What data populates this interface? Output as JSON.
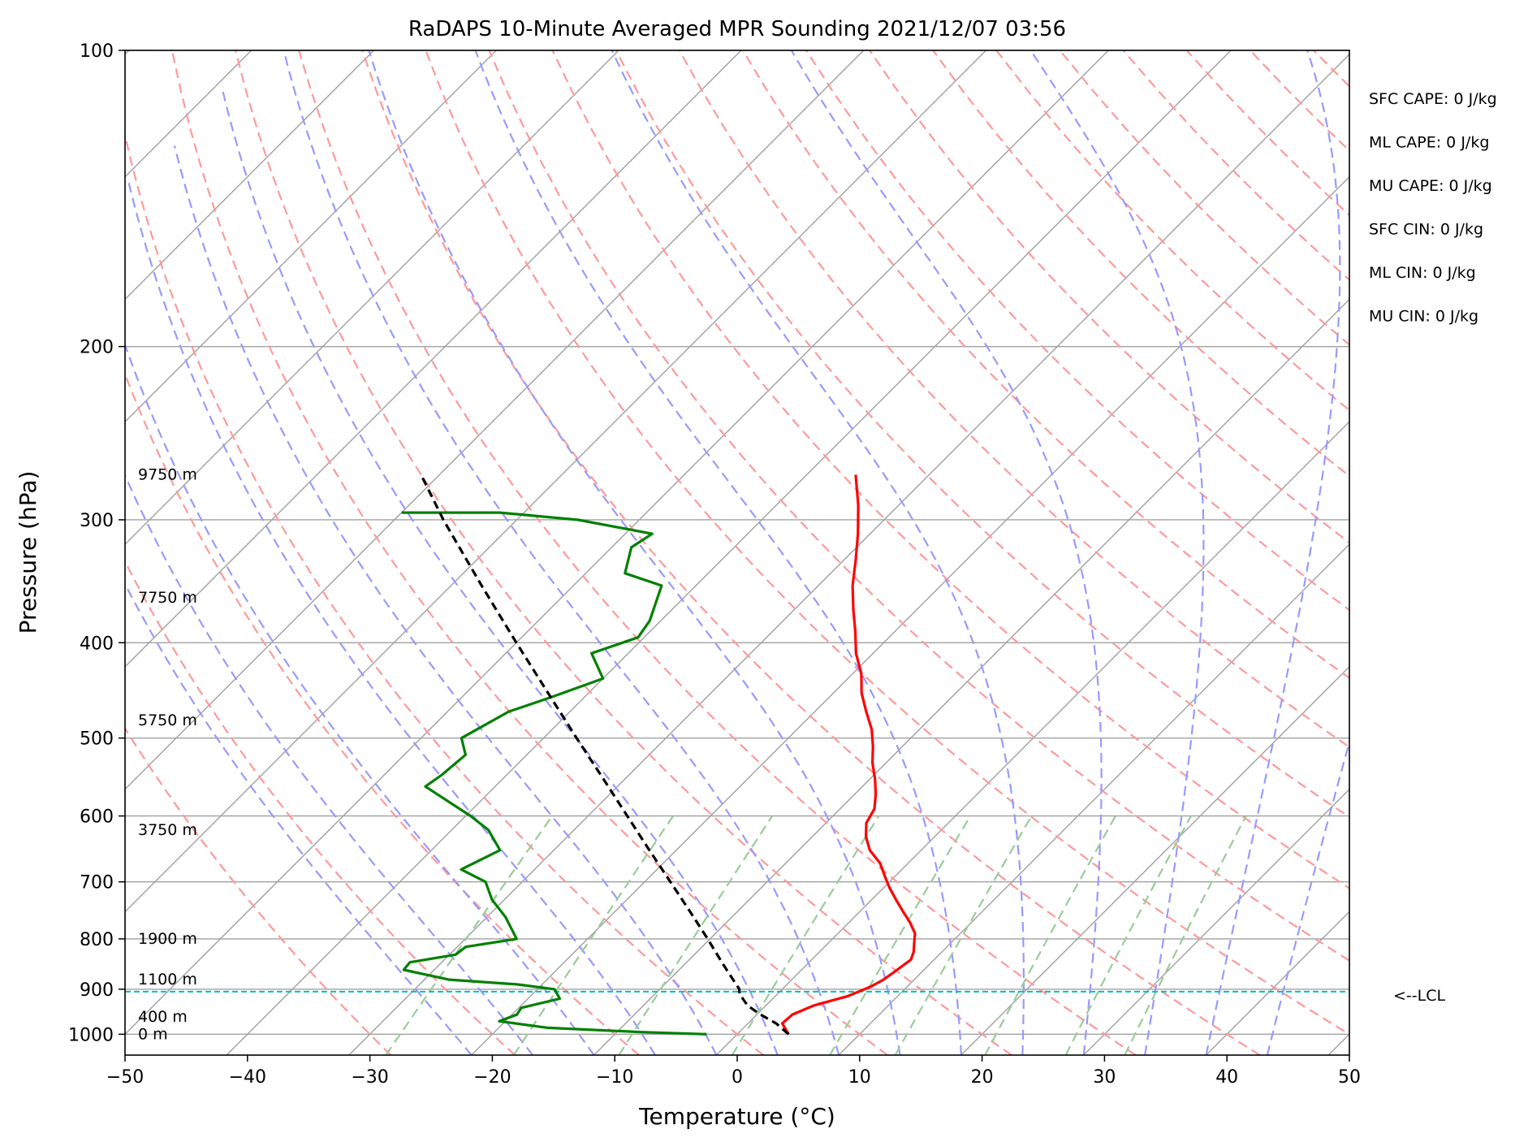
{
  "chart_data": {
    "type": "line",
    "title": "RaDAPS 10-Minute Averaged MPR Sounding 2021/12/07 03:56",
    "xlabel": "Temperature (°C)",
    "ylabel": "Pressure (hPa)",
    "xlim": [
      -50,
      50
    ],
    "ylim": [
      1050,
      100
    ],
    "y_scale": "log",
    "x_ticks": [
      -50,
      -40,
      -30,
      -20,
      -10,
      0,
      10,
      20,
      30,
      40,
      50
    ],
    "x_tick_labels": [
      "−50",
      "−40",
      "−30",
      "−20",
      "−10",
      "0",
      "10",
      "20",
      "30",
      "40",
      "50"
    ],
    "y_ticks": [
      100,
      200,
      300,
      400,
      500,
      600,
      700,
      800,
      900,
      1000
    ],
    "y_tick_labels": [
      "100",
      "200",
      "300",
      "400",
      "500",
      "600",
      "700",
      "800",
      "900",
      "1000"
    ],
    "grid": true,
    "skew": "45°",
    "series": [
      {
        "color": "#ff0000",
        "values": [
          [
            1000,
            4.2
          ],
          [
            975,
            2.8
          ],
          [
            955,
            2.9
          ],
          [
            935,
            3.9
          ],
          [
            915,
            5.9
          ],
          [
            895,
            7.0
          ],
          [
            880,
            7.5
          ],
          [
            860,
            7.8
          ],
          [
            840,
            8.1
          ],
          [
            825,
            7.7
          ],
          [
            810,
            7.1
          ],
          [
            790,
            6.3
          ],
          [
            770,
            5.0
          ],
          [
            750,
            3.5
          ],
          [
            730,
            2.0
          ],
          [
            710,
            0.5
          ],
          [
            690,
            -0.9
          ],
          [
            670,
            -2.3
          ],
          [
            650,
            -4.2
          ],
          [
            630,
            -5.6
          ],
          [
            610,
            -6.7
          ],
          [
            590,
            -7.2
          ],
          [
            570,
            -8.3
          ],
          [
            550,
            -9.6
          ],
          [
            530,
            -11.1
          ],
          [
            510,
            -12.4
          ],
          [
            490,
            -13.9
          ],
          [
            470,
            -15.8
          ],
          [
            450,
            -17.7
          ],
          [
            430,
            -19.3
          ],
          [
            410,
            -21.4
          ],
          [
            390,
            -23.2
          ],
          [
            370,
            -25.2
          ],
          [
            350,
            -27.2
          ],
          [
            330,
            -29.0
          ],
          [
            310,
            -31.0
          ],
          [
            290,
            -33.3
          ],
          [
            270,
            -36.0
          ]
        ]
      },
      {
        "color": "#008000",
        "values": [
          [
            1000,
            -2.5
          ],
          [
            995,
            -8.0
          ],
          [
            985,
            -16.0
          ],
          [
            970,
            -20.5
          ],
          [
            955,
            -19.6
          ],
          [
            940,
            -19.8
          ],
          [
            920,
            -17.4
          ],
          [
            900,
            -18.6
          ],
          [
            890,
            -22.0
          ],
          [
            880,
            -28.0
          ],
          [
            860,
            -32.5
          ],
          [
            845,
            -32.6
          ],
          [
            830,
            -29.5
          ],
          [
            815,
            -29.3
          ],
          [
            800,
            -25.8
          ],
          [
            760,
            -28.5
          ],
          [
            730,
            -31.0
          ],
          [
            700,
            -33.0
          ],
          [
            680,
            -36.0
          ],
          [
            650,
            -34.4
          ],
          [
            620,
            -37.0
          ],
          [
            600,
            -39.6
          ],
          [
            560,
            -45.7
          ],
          [
            545,
            -45.3
          ],
          [
            520,
            -45.0
          ],
          [
            500,
            -46.7
          ],
          [
            470,
            -45.0
          ],
          [
            455,
            -42.8
          ],
          [
            435,
            -40.0
          ],
          [
            410,
            -43.0
          ],
          [
            395,
            -40.5
          ],
          [
            380,
            -40.9
          ],
          [
            350,
            -42.8
          ],
          [
            340,
            -46.8
          ],
          [
            320,
            -48.4
          ],
          [
            310,
            -47.8
          ],
          [
            300,
            -55.0
          ],
          [
            295,
            -62.0
          ],
          [
            295,
            -70.0
          ]
        ]
      },
      {
        "color": "#000000",
        "values": [
          [
            1000,
            4.2
          ],
          [
            975,
            2.3
          ],
          [
            955,
            0.3
          ],
          [
            935,
            -1.5
          ],
          [
            910,
            -3.1
          ],
          [
            900,
            -3.5
          ],
          [
            850,
            -6.8
          ],
          [
            800,
            -10.2
          ],
          [
            750,
            -13.9
          ],
          [
            700,
            -17.9
          ],
          [
            650,
            -22.2
          ],
          [
            600,
            -26.8
          ],
          [
            550,
            -31.8
          ],
          [
            500,
            -37.3
          ],
          [
            450,
            -43.3
          ],
          [
            400,
            -50.0
          ],
          [
            350,
            -57.5
          ],
          [
            300,
            -66.0
          ],
          [
            270,
            -71.5
          ]
        ]
      }
    ],
    "height_labels": [
      {
        "p": 1000,
        "text": "0 m"
      },
      {
        "p": 960,
        "text": "400 m"
      },
      {
        "p": 880,
        "text": "1100 m"
      },
      {
        "p": 800,
        "text": "1900 m"
      },
      {
        "p": 620,
        "text": "3750 m"
      },
      {
        "p": 480,
        "text": "5750 m"
      },
      {
        "p": 360,
        "text": "7750 m"
      },
      {
        "p": 270,
        "text": "9750 m"
      }
    ],
    "lcl": {
      "p": 905,
      "label": "<--LCL",
      "color": "#00bfbf"
    },
    "indices": [
      "SFC CAPE: 0 J/kg",
      "ML CAPE: 0 J/kg",
      "MU CAPE: 0 J/kg",
      "SFC CIN: 0 J/kg",
      "ML CIN: 0 J/kg",
      "MU CIN: 0 J/kg"
    ],
    "colors": {
      "dry_adiabats": "#ff9999",
      "moist_adiabats": "#9999ff",
      "mixing_ratio": "#99cc99",
      "isotherms": "#a0a0a0",
      "isobars": "#a0a0a0"
    }
  }
}
